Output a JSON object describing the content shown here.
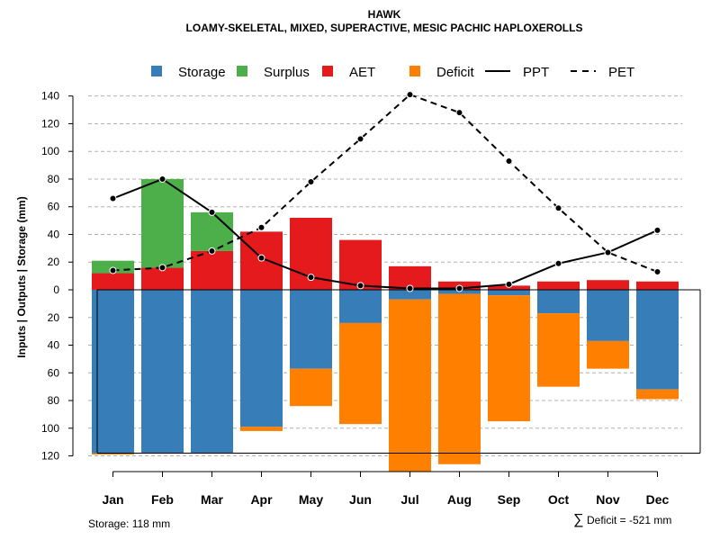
{
  "chart_data": {
    "type": "bar",
    "title": "HAWK",
    "subtitle": "LOAMY-SKELETAL, MIXED, SUPERACTIVE, MESIC PACHIC HAPLOXEROLLS",
    "ylabel": "Inputs | Outputs | Storage    (mm)",
    "ylim": [
      -120,
      140
    ],
    "yticks": [
      140,
      120,
      100,
      80,
      60,
      40,
      20,
      0,
      -20,
      -40,
      -60,
      -80,
      -100,
      -120
    ],
    "ytick_labels": [
      "140",
      "120",
      "100",
      "80",
      "60",
      "40",
      "20",
      "0",
      "20",
      "40",
      "60",
      "80",
      "100",
      "120"
    ],
    "categories": [
      "Jan",
      "Feb",
      "Mar",
      "Apr",
      "May",
      "Jun",
      "Jul",
      "Aug",
      "Sep",
      "Oct",
      "Nov",
      "Dec"
    ],
    "legend": [
      {
        "name": "Storage",
        "kind": "box",
        "color": "#377EB8"
      },
      {
        "name": "Surplus",
        "kind": "box",
        "color": "#4DAF4A"
      },
      {
        "name": "AET",
        "kind": "box",
        "color": "#E41A1C"
      },
      {
        "name": "Deficit",
        "kind": "box",
        "color": "#FF7F00"
      },
      {
        "name": "PPT",
        "kind": "solid",
        "color": "#000000"
      },
      {
        "name": "PET",
        "kind": "dashed",
        "color": "#000000"
      }
    ],
    "series": [
      {
        "name": "AET",
        "color": "#E41A1C",
        "values": [
          12,
          16,
          28,
          42,
          52,
          36,
          17,
          6,
          3,
          6,
          7,
          6
        ]
      },
      {
        "name": "Surplus",
        "color": "#4DAF4A",
        "values": [
          9,
          64,
          28,
          0,
          0,
          0,
          0,
          0,
          0,
          0,
          0,
          0
        ]
      },
      {
        "name": "Storage",
        "color": "#377EB8",
        "values": [
          118,
          118,
          118,
          99,
          57,
          24,
          7,
          3,
          4,
          17,
          37,
          72
        ]
      },
      {
        "name": "Deficit",
        "color": "#FF7F00",
        "values": [
          1,
          0,
          0,
          3,
          27,
          73,
          124,
          123,
          91,
          53,
          20,
          7
        ]
      },
      {
        "name": "PPT",
        "color": "#000000",
        "values": [
          66,
          80,
          56,
          23,
          9,
          3,
          1,
          1,
          4,
          19,
          27,
          43
        ]
      },
      {
        "name": "PET",
        "color": "#000000",
        "values": [
          14,
          16,
          28,
          45,
          78,
          109,
          141,
          128,
          93,
          59,
          27,
          13
        ]
      }
    ],
    "storage_capacity": 118,
    "footer_left": "Storage: 118 mm",
    "footer_right_symbol": "∑",
    "footer_right": "Deficit = -521 mm"
  }
}
